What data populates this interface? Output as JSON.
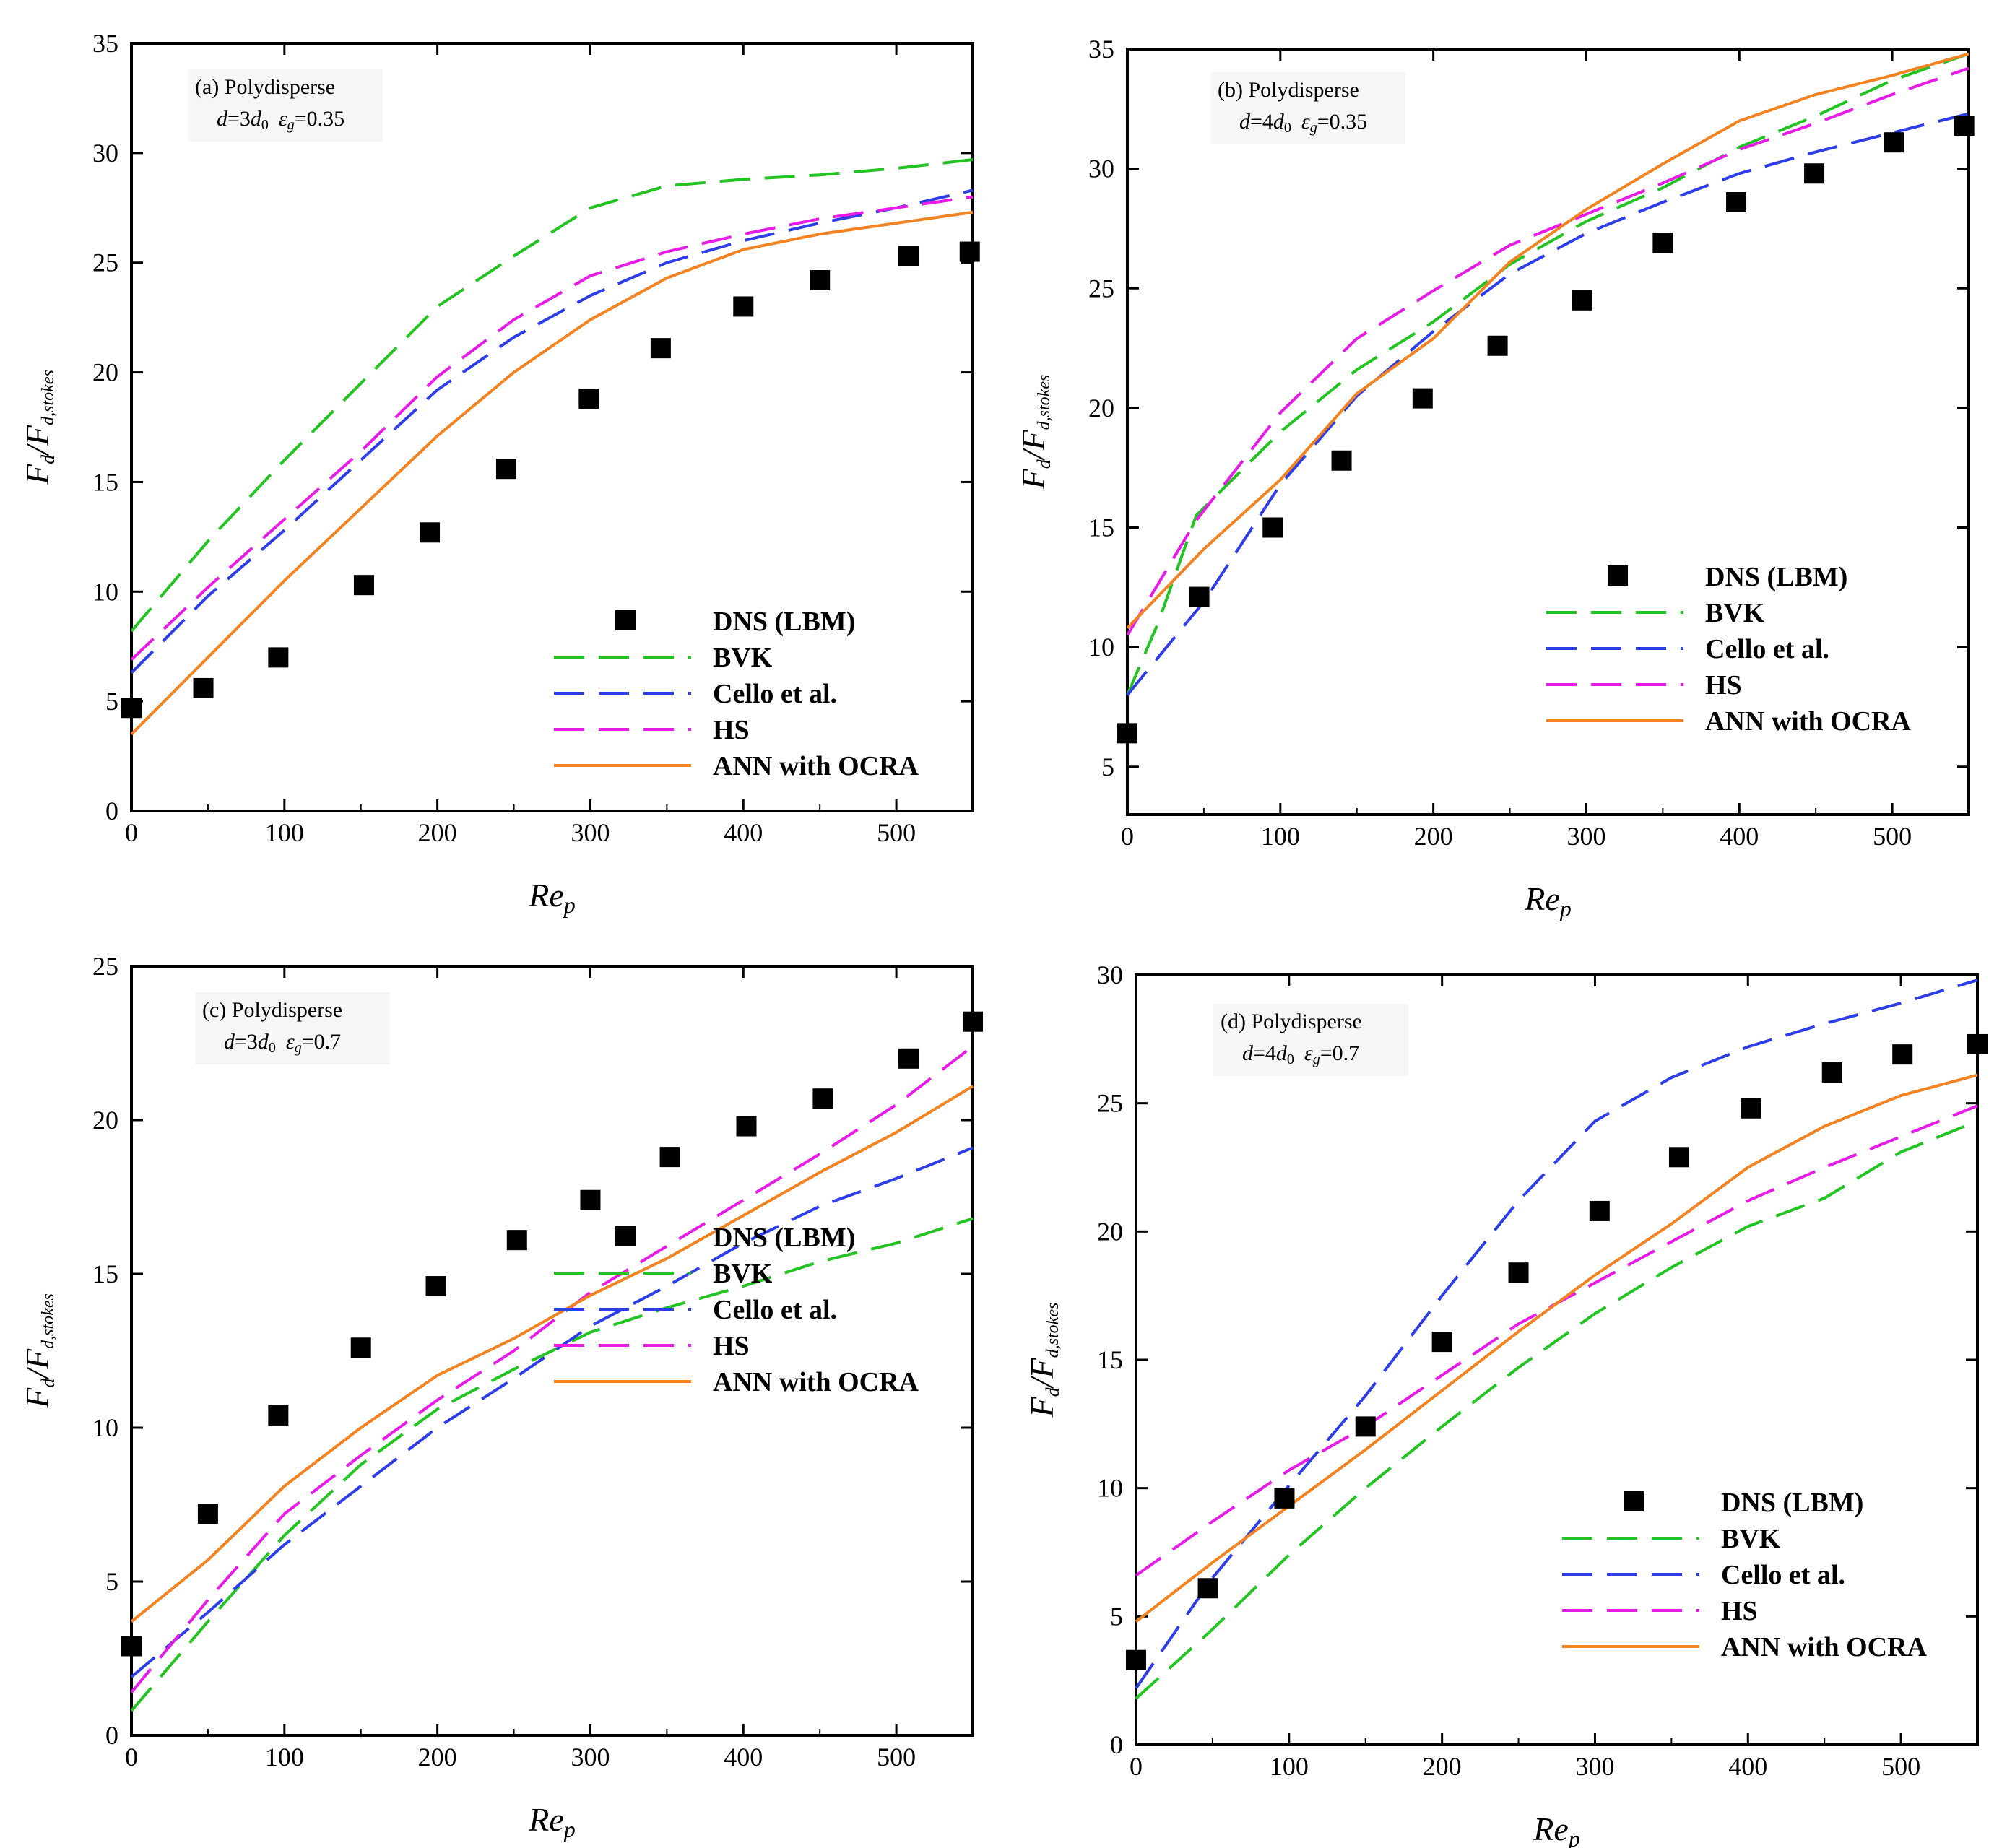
{
  "figure": {
    "legend": {
      "dns": "DNS (LBM)",
      "bvk": "BVK",
      "cello": "Cello et al.",
      "hs": "HS",
      "ann": "ANN with OCRA"
    },
    "ylabel": {
      "main": "F",
      "sub1": "d",
      "slash": "/F",
      "sub2": "d,stokes"
    },
    "xlabel": {
      "main": "Re",
      "sub": "p"
    },
    "annotation_d": {
      "var": "d",
      "eq": "=",
      "coef3": "3",
      "coef4": "4",
      "d0": "d",
      "d0sub": "0",
      "eps": "ε",
      "epssub": "g",
      "eq2": "="
    }
  },
  "chart_data": [
    {
      "type": "line",
      "panel": "a",
      "title": "(a) Polydisperse",
      "annotation": {
        "d_coef": "3",
        "eps_value": "0.35"
      },
      "xlabel": "Re_p",
      "ylabel": "F_d/F_d,stokes",
      "xlim": [
        0,
        550
      ],
      "ylim": [
        0,
        35
      ],
      "xticks": [
        0,
        100,
        200,
        300,
        400,
        500
      ],
      "yticks": [
        0,
        5,
        10,
        15,
        20,
        25,
        30,
        35
      ],
      "grid": false,
      "legend_position": "bottom-right",
      "markers": {
        "name": "DNS (LBM)",
        "x": [
          0,
          47,
          96,
          152,
          195,
          245,
          299,
          346,
          400,
          450,
          508,
          548
        ],
        "y": [
          4.7,
          5.6,
          7.0,
          10.3,
          12.7,
          15.6,
          18.8,
          21.1,
          23.0,
          24.2,
          25.3,
          25.5
        ]
      },
      "series": [
        {
          "name": "BVK",
          "x": [
            0,
            50,
            100,
            150,
            200,
            250,
            300,
            350,
            400,
            450,
            500,
            550
          ],
          "y": [
            8.2,
            12.3,
            16.0,
            19.5,
            23.0,
            25.3,
            27.5,
            28.5,
            28.8,
            29.0,
            29.3,
            29.7
          ]
        },
        {
          "name": "Cello et al.",
          "x": [
            0,
            50,
            100,
            150,
            200,
            250,
            300,
            350,
            400,
            450,
            500,
            550
          ],
          "y": [
            6.3,
            9.8,
            12.8,
            16.0,
            19.2,
            21.6,
            23.5,
            25.0,
            26.0,
            26.8,
            27.5,
            28.3
          ]
        },
        {
          "name": "HS",
          "x": [
            0,
            50,
            100,
            150,
            200,
            250,
            300,
            350,
            400,
            450,
            500,
            550
          ],
          "y": [
            6.9,
            10.2,
            13.3,
            16.4,
            19.8,
            22.4,
            24.4,
            25.5,
            26.3,
            27.0,
            27.5,
            28.0
          ]
        },
        {
          "name": "ANN with OCRA",
          "x": [
            0,
            50,
            100,
            150,
            200,
            250,
            300,
            350,
            400,
            450,
            500,
            550
          ],
          "y": [
            3.5,
            7.0,
            10.5,
            13.8,
            17.1,
            20.0,
            22.4,
            24.3,
            25.6,
            26.3,
            26.8,
            27.3
          ]
        }
      ]
    },
    {
      "type": "line",
      "panel": "b",
      "title": "(b) Polydisperse",
      "annotation": {
        "d_coef": "4",
        "eps_value": "0.35"
      },
      "xlabel": "Re_p",
      "ylabel": "F_d/F_d,stokes",
      "xlim": [
        0,
        550
      ],
      "ylim": [
        3,
        35
      ],
      "xticks": [
        0,
        100,
        200,
        300,
        400,
        500
      ],
      "yticks": [
        5,
        10,
        15,
        20,
        25,
        30,
        35
      ],
      "grid": false,
      "legend_position": "bottom-right",
      "markers": {
        "name": "DNS (LBM)",
        "x": [
          0,
          47,
          95,
          140,
          193,
          242,
          297,
          350,
          398,
          449,
          501,
          547
        ],
        "y": [
          6.4,
          12.1,
          15.0,
          17.8,
          20.4,
          22.6,
          24.5,
          26.9,
          28.6,
          29.8,
          31.1,
          31.8
        ]
      },
      "series": [
        {
          "name": "BVK",
          "x": [
            0,
            20,
            45,
            100,
            150,
            200,
            250,
            300,
            350,
            400,
            450,
            500,
            550
          ],
          "y": [
            8.0,
            11.0,
            15.5,
            19.0,
            21.6,
            23.6,
            26.0,
            27.8,
            29.2,
            30.9,
            32.2,
            33.7,
            34.8
          ]
        },
        {
          "name": "Cello et al.",
          "x": [
            0,
            50,
            100,
            150,
            200,
            250,
            300,
            350,
            400,
            450,
            500,
            550
          ],
          "y": [
            8.0,
            11.9,
            16.8,
            20.5,
            23.2,
            25.6,
            27.3,
            28.6,
            29.8,
            30.7,
            31.5,
            32.3
          ]
        },
        {
          "name": "HS",
          "x": [
            0,
            45,
            100,
            150,
            200,
            250,
            300,
            350,
            400,
            450,
            500,
            550
          ],
          "y": [
            10.5,
            15.3,
            19.8,
            22.9,
            24.9,
            26.8,
            28.1,
            29.4,
            30.8,
            31.9,
            33.1,
            34.2
          ]
        },
        {
          "name": "ANN with OCRA",
          "x": [
            0,
            50,
            100,
            150,
            200,
            250,
            300,
            350,
            400,
            450,
            500,
            550
          ],
          "y": [
            10.8,
            14.1,
            17.0,
            20.6,
            22.9,
            26.1,
            28.3,
            30.2,
            32.0,
            33.1,
            33.9,
            34.8
          ]
        }
      ]
    },
    {
      "type": "line",
      "panel": "c",
      "title": "(c) Polydisperse",
      "annotation": {
        "d_coef": "3",
        "eps_value": "0.7"
      },
      "xlabel": "Re_p",
      "ylabel": "F_d/F_d,stokes",
      "xlim": [
        0,
        550
      ],
      "ylim": [
        0,
        25
      ],
      "xticks": [
        0,
        100,
        200,
        300,
        400,
        500
      ],
      "yticks": [
        0,
        5,
        10,
        15,
        20,
        25
      ],
      "grid": false,
      "legend_position": "bottom-right",
      "markers": {
        "name": "DNS (LBM)",
        "x": [
          0,
          50,
          96,
          150,
          199,
          252,
          300,
          352,
          402,
          452,
          508,
          550
        ],
        "y": [
          2.9,
          7.2,
          10.4,
          12.6,
          14.6,
          16.1,
          17.4,
          18.8,
          19.8,
          20.7,
          22.0,
          23.2
        ]
      },
      "series": [
        {
          "name": "BVK",
          "x": [
            0,
            50,
            100,
            150,
            200,
            250,
            300,
            350,
            400,
            450,
            500,
            550
          ],
          "y": [
            0.8,
            3.7,
            6.5,
            8.8,
            10.6,
            11.9,
            13.1,
            13.9,
            14.6,
            15.4,
            16.0,
            16.8
          ]
        },
        {
          "name": "Cello et al.",
          "x": [
            0,
            50,
            100,
            150,
            200,
            250,
            300,
            350,
            400,
            450,
            500,
            550
          ],
          "y": [
            1.9,
            4.0,
            6.2,
            8.1,
            10.0,
            11.6,
            13.3,
            14.6,
            16.0,
            17.2,
            18.1,
            19.1
          ]
        },
        {
          "name": "HS",
          "x": [
            0,
            50,
            100,
            150,
            200,
            250,
            300,
            350,
            400,
            450,
            500,
            550
          ],
          "y": [
            1.4,
            4.4,
            7.2,
            9.1,
            10.9,
            12.5,
            14.4,
            15.9,
            17.4,
            18.9,
            20.5,
            22.4
          ]
        },
        {
          "name": "ANN with OCRA",
          "x": [
            0,
            50,
            100,
            150,
            200,
            250,
            300,
            350,
            400,
            450,
            500,
            550
          ],
          "y": [
            3.7,
            5.7,
            8.1,
            10.0,
            11.7,
            12.9,
            14.3,
            15.5,
            16.9,
            18.3,
            19.6,
            21.1
          ]
        }
      ]
    },
    {
      "type": "line",
      "panel": "d",
      "title": "(d) Polydisperse",
      "annotation": {
        "d_coef": "4",
        "eps_value": "0.7"
      },
      "xlabel": "Re_p",
      "ylabel": "F_d/F_d,stokes",
      "xlim": [
        0,
        550
      ],
      "ylim": [
        0,
        30
      ],
      "xticks": [
        0,
        100,
        200,
        300,
        400,
        500
      ],
      "yticks": [
        0,
        5,
        10,
        15,
        20,
        25,
        30
      ],
      "grid": false,
      "legend_position": "bottom-right",
      "markers": {
        "name": "DNS (LBM)",
        "x": [
          0,
          47,
          97,
          150,
          200,
          250,
          303,
          355,
          402,
          455,
          501,
          550
        ],
        "y": [
          3.3,
          6.1,
          9.6,
          12.4,
          15.7,
          18.4,
          20.8,
          22.9,
          24.8,
          26.2,
          26.9,
          27.3
        ]
      },
      "series": [
        {
          "name": "BVK",
          "x": [
            0,
            50,
            100,
            150,
            200,
            250,
            300,
            350,
            400,
            450,
            500,
            550
          ],
          "y": [
            1.8,
            4.5,
            7.4,
            10.0,
            12.4,
            14.7,
            16.8,
            18.6,
            20.2,
            21.3,
            23.1,
            24.3
          ]
        },
        {
          "name": "Cello et al.",
          "x": [
            0,
            50,
            100,
            150,
            200,
            250,
            300,
            350,
            400,
            450,
            500,
            550
          ],
          "y": [
            2.2,
            6.5,
            10.1,
            13.6,
            17.5,
            21.2,
            24.3,
            26.0,
            27.2,
            28.1,
            28.9,
            29.8
          ]
        },
        {
          "name": "HS",
          "x": [
            0,
            50,
            100,
            150,
            200,
            250,
            300,
            350,
            400,
            450,
            500,
            550
          ],
          "y": [
            6.6,
            8.7,
            10.7,
            12.4,
            14.4,
            16.4,
            18.0,
            19.6,
            21.2,
            22.5,
            23.7,
            24.9
          ]
        },
        {
          "name": "ANN with OCRA",
          "x": [
            0,
            50,
            100,
            150,
            200,
            250,
            300,
            350,
            400,
            450,
            500,
            550
          ],
          "y": [
            4.8,
            7.1,
            9.3,
            11.5,
            13.8,
            16.1,
            18.3,
            20.3,
            22.5,
            24.1,
            25.3,
            26.1
          ]
        }
      ]
    }
  ],
  "colors": {
    "bvk": "#22c322",
    "cello": "#2e3ee6",
    "hs": "#e61ce6",
    "ann": "#f28322",
    "marker": "#000000"
  }
}
